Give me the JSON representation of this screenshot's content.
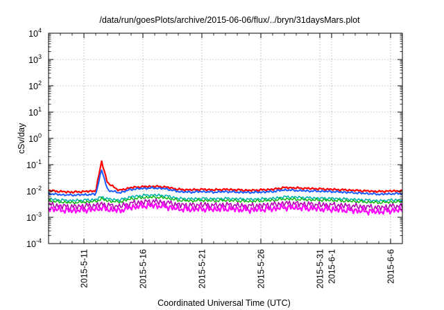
{
  "chart_data": {
    "type": "line",
    "title": "/data/run/goesPlots/archive/2015-06-06/flux/../bryn/31daysMars.plot",
    "xlabel": "Coordinated Universal Time (UTC)",
    "ylabel": "cSv/day",
    "y_scale": "log",
    "ylim": [
      0.0001,
      10000
    ],
    "xlim": [
      "2015-05-08",
      "2015-06-07"
    ],
    "grid": true,
    "y_ticks": [
      {
        "value": 0.0001,
        "base": "10",
        "exp": "-4"
      },
      {
        "value": 0.001,
        "base": "10",
        "exp": "-3"
      },
      {
        "value": 0.01,
        "base": "10",
        "exp": "-2"
      },
      {
        "value": 0.1,
        "base": "10",
        "exp": "-1"
      },
      {
        "value": 1,
        "base": "10",
        "exp": "0"
      },
      {
        "value": 10,
        "base": "10",
        "exp": "1"
      },
      {
        "value": 100,
        "base": "10",
        "exp": "2"
      },
      {
        "value": 1000,
        "base": "10",
        "exp": "3"
      },
      {
        "value": 10000,
        "base": "10",
        "exp": "4"
      }
    ],
    "x_ticks": [
      {
        "date": "2015-05-11",
        "label": "2015-5-11"
      },
      {
        "date": "2015-05-16",
        "label": "2015-5-16"
      },
      {
        "date": "2015-05-21",
        "label": "2015-5-21"
      },
      {
        "date": "2015-05-26",
        "label": "2015-5-26"
      },
      {
        "date": "2015-05-31",
        "label": "2015-5-31"
      },
      {
        "date": "2015-06-01",
        "label": "2015-6-1"
      },
      {
        "date": "2015-06-06",
        "label": "2015-6-6"
      }
    ],
    "x": [
      "2015-05-08",
      "2015-05-09",
      "2015-05-10",
      "2015-05-11",
      "2015-05-12",
      "2015-05-12T12:00",
      "2015-05-13",
      "2015-05-14",
      "2015-05-15",
      "2015-05-16",
      "2015-05-17",
      "2015-05-18",
      "2015-05-19",
      "2015-05-20",
      "2015-05-21",
      "2015-05-22",
      "2015-05-23",
      "2015-05-24",
      "2015-05-25",
      "2015-05-26",
      "2015-05-27",
      "2015-05-28",
      "2015-05-29",
      "2015-05-30",
      "2015-05-31",
      "2015-06-01",
      "2015-06-02",
      "2015-06-03",
      "2015-06-04",
      "2015-06-05",
      "2015-06-06",
      "2015-06-07"
    ],
    "series": [
      {
        "color": "#ff0000",
        "width": 2.2,
        "values": [
          0.0105,
          0.0095,
          0.009,
          0.0095,
          0.01,
          0.135,
          0.02,
          0.0105,
          0.0135,
          0.0145,
          0.015,
          0.014,
          0.0115,
          0.011,
          0.0115,
          0.011,
          0.0115,
          0.011,
          0.0105,
          0.011,
          0.0115,
          0.0135,
          0.013,
          0.0125,
          0.012,
          0.0115,
          0.011,
          0.0105,
          0.01,
          0.0095,
          0.01,
          0.01
        ]
      },
      {
        "color": "#1a5cff",
        "width": 2.0,
        "values": [
          0.008,
          0.0072,
          0.007,
          0.0072,
          0.0075,
          0.065,
          0.011,
          0.0085,
          0.0115,
          0.0125,
          0.013,
          0.012,
          0.0095,
          0.009,
          0.0095,
          0.009,
          0.0095,
          0.009,
          0.0088,
          0.009,
          0.0095,
          0.011,
          0.0105,
          0.01,
          0.0098,
          0.0095,
          0.009,
          0.0085,
          0.008,
          0.0075,
          0.0078,
          0.008
        ]
      },
      {
        "color": "#00b4aa",
        "width": 1.6,
        "values": [
          0.005,
          0.0045,
          0.0043,
          0.0045,
          0.0047,
          0.006,
          0.005,
          0.0045,
          0.006,
          0.0068,
          0.007,
          0.0065,
          0.0052,
          0.005,
          0.0052,
          0.005,
          0.0052,
          0.005,
          0.0048,
          0.005,
          0.0052,
          0.006,
          0.0058,
          0.0055,
          0.0053,
          0.0052,
          0.005,
          0.0047,
          0.0045,
          0.0042,
          0.0045,
          0.0046
        ]
      },
      {
        "color": "#00b400",
        "width": 1.4,
        "values": [
          0.0042,
          0.0038,
          0.0036,
          0.0038,
          0.004,
          0.005,
          0.0042,
          0.0038,
          0.005,
          0.0056,
          0.0058,
          0.0054,
          0.0044,
          0.0042,
          0.0044,
          0.0042,
          0.0044,
          0.0042,
          0.004,
          0.0042,
          0.0044,
          0.005,
          0.0048,
          0.0046,
          0.0045,
          0.0044,
          0.0042,
          0.004,
          0.0038,
          0.0036,
          0.0038,
          0.0039
        ]
      },
      {
        "color": "#b400b4",
        "width": 1.6,
        "values": [
          0.003,
          0.0027,
          0.0025,
          0.0027,
          0.0028,
          0.0032,
          0.0028,
          0.0026,
          0.0034,
          0.0038,
          0.004,
          0.0036,
          0.003,
          0.0028,
          0.003,
          0.0028,
          0.003,
          0.0028,
          0.0027,
          0.0028,
          0.003,
          0.0034,
          0.0033,
          0.0031,
          0.003,
          0.0029,
          0.0028,
          0.0026,
          0.0025,
          0.0023,
          0.0026,
          0.0027
        ]
      },
      {
        "color": "#ff00ff",
        "width": 2.2,
        "values": [
          0.0022,
          0.0019,
          0.0018,
          0.0019,
          0.002,
          0.0023,
          0.002,
          0.0018,
          0.0024,
          0.0027,
          0.0028,
          0.0025,
          0.0021,
          0.002,
          0.0021,
          0.002,
          0.0021,
          0.002,
          0.0019,
          0.002,
          0.0021,
          0.0024,
          0.0023,
          0.0022,
          0.0021,
          0.002,
          0.0019,
          0.0018,
          0.0017,
          0.0016,
          0.0018,
          0.0019
        ]
      }
    ]
  }
}
